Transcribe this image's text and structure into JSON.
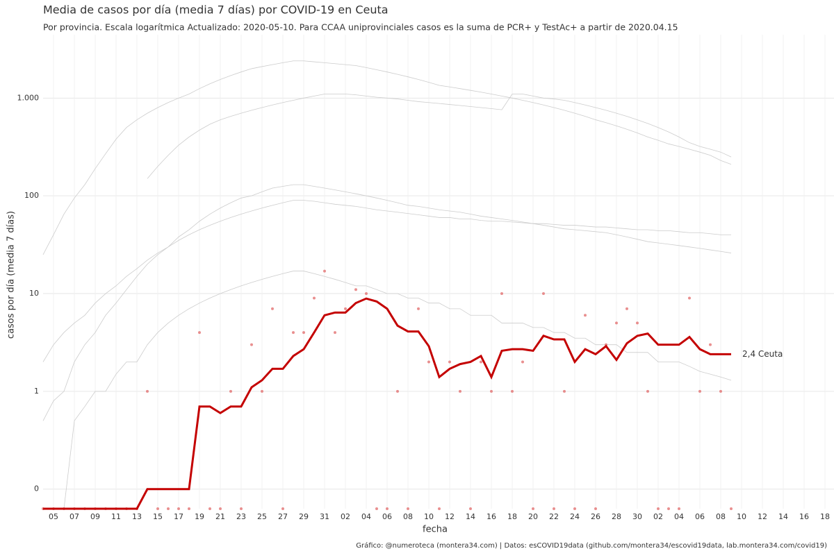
{
  "chart_data": {
    "type": "line",
    "title": "Media de casos por día (media 7 días) por COVID-19 en Ceuta",
    "subtitle": "Por provincia. Escala logarítmica  Actualizado: 2020-05-10. Para CCAA uniprovinciales casos es la suma de PCR+ y TestAc+ a partir de 2020.04.15",
    "x_label": "fecha",
    "y_label": "casos por día (media 7 días)",
    "caption": "Gráfico: @numeroteca (montera34.com) | Datos: esCOVID19data (github.com/montera34/escovid19data, lab.montera34.com/covid19)",
    "end_label": "2,4 Ceuta",
    "log_scale": true,
    "grid": true,
    "categories": [
      null,
      "05",
      null,
      "07",
      null,
      "09",
      null,
      "11",
      null,
      "13",
      null,
      "15",
      null,
      "17",
      null,
      "19",
      null,
      "21",
      null,
      "23",
      null,
      "25",
      null,
      "27",
      null,
      "29",
      null,
      "31",
      null,
      "02",
      null,
      "04",
      null,
      "06",
      null,
      "08",
      null,
      "10",
      null,
      "12",
      null,
      "14",
      null,
      "16",
      null,
      "18",
      null,
      "20",
      null,
      "22",
      null,
      "24",
      null,
      "26",
      null,
      "28",
      null,
      "30",
      null,
      "02",
      null,
      "04",
      null,
      "06",
      null,
      "08",
      null,
      "10",
      null,
      "12",
      null,
      "14",
      null,
      "16",
      null,
      "18"
    ],
    "ylim": [
      0.063,
      4450
    ],
    "yticks": [
      {
        "value": 0.1,
        "label": "0"
      },
      1,
      10,
      100,
      {
        "value": 1000,
        "label": "1.000"
      }
    ],
    "series": [
      {
        "color": "#cccccc",
        "values": [
          25,
          40,
          65,
          95,
          130,
          190,
          270,
          380,
          500,
          600,
          700,
          800,
          900,
          1000,
          1100,
          1250,
          1400,
          1550,
          1700,
          1850,
          2000,
          2100,
          2200,
          2300,
          2400,
          2400,
          2350,
          2300,
          2250,
          2200,
          2150,
          2050,
          1950,
          1850,
          1750,
          1650,
          1550,
          1450,
          1350,
          1300,
          1250,
          1200,
          1150,
          1100,
          1050,
          1000,
          950,
          900,
          850,
          800,
          750,
          700,
          650,
          600,
          560,
          520,
          480,
          440,
          400,
          370,
          340,
          320,
          300,
          280,
          260,
          230,
          210,
          null,
          null,
          null,
          null,
          null,
          null,
          null,
          null,
          null
        ]
      },
      {
        "color": "#cccccc",
        "values": [
          null,
          null,
          null,
          null,
          null,
          null,
          null,
          null,
          null,
          null,
          150,
          200,
          260,
          330,
          400,
          470,
          540,
          600,
          650,
          700,
          750,
          800,
          850,
          900,
          950,
          1000,
          1050,
          1100,
          1100,
          1100,
          1080,
          1050,
          1020,
          1000,
          980,
          950,
          920,
          900,
          880,
          860,
          840,
          820,
          800,
          780,
          760,
          1100,
          1100,
          1050,
          1000,
          980,
          950,
          900,
          850,
          800,
          750,
          700,
          650,
          600,
          550,
          500,
          450,
          400,
          350,
          320,
          300,
          280,
          250,
          null,
          null,
          null,
          null,
          null,
          null,
          null,
          null,
          null
        ]
      },
      {
        "color": "#cccccc",
        "values": [
          0.5,
          0.8,
          1,
          2,
          3,
          4,
          6,
          8,
          11,
          15,
          20,
          25,
          30,
          38,
          45,
          55,
          65,
          75,
          85,
          95,
          100,
          110,
          120,
          125,
          130,
          130,
          125,
          120,
          115,
          110,
          105,
          100,
          95,
          90,
          85,
          80,
          78,
          75,
          72,
          70,
          68,
          65,
          62,
          60,
          58,
          56,
          54,
          52,
          50,
          48,
          46,
          45,
          44,
          43,
          42,
          40,
          38,
          36,
          34,
          33,
          32,
          31,
          30,
          29,
          28,
          27,
          26,
          null,
          null,
          null,
          null,
          null,
          null,
          null,
          null,
          null
        ]
      },
      {
        "color": "#cccccc",
        "values": [
          2,
          3,
          4,
          5,
          6,
          8,
          10,
          12,
          15,
          18,
          22,
          26,
          30,
          35,
          40,
          45,
          50,
          55,
          60,
          65,
          70,
          75,
          80,
          85,
          90,
          90,
          88,
          85,
          82,
          80,
          78,
          75,
          72,
          70,
          68,
          66,
          64,
          62,
          60,
          60,
          58,
          58,
          56,
          55,
          55,
          54,
          53,
          52,
          52,
          51,
          50,
          50,
          49,
          48,
          48,
          47,
          46,
          45,
          45,
          44,
          44,
          43,
          42,
          42,
          41,
          40,
          40,
          null,
          null,
          null,
          null,
          null,
          null,
          null,
          null,
          null
        ]
      },
      {
        "color": "#cccccc",
        "values": [
          0,
          0,
          0,
          0.5,
          0.7,
          1,
          1,
          1.5,
          2,
          2,
          3,
          4,
          5,
          6,
          7,
          8,
          9,
          10,
          11,
          12,
          13,
          14,
          15,
          16,
          17,
          17,
          16,
          15,
          14,
          13,
          12,
          12,
          11,
          10,
          10,
          9,
          9,
          8,
          8,
          7,
          7,
          6,
          6,
          6,
          5,
          5,
          5,
          4.5,
          4.5,
          4,
          4,
          3.5,
          3.5,
          3,
          3,
          3,
          2.5,
          2.5,
          2.5,
          2,
          2,
          2,
          1.8,
          1.6,
          1.5,
          1.4,
          1.3,
          null,
          null,
          null,
          null,
          null,
          null,
          null,
          null,
          null
        ]
      },
      {
        "name": "Ceuta",
        "color": "#c40000",
        "values": [
          0,
          0,
          0,
          0,
          0,
          0,
          0,
          0,
          0,
          0,
          0.1,
          0.1,
          0.1,
          0.1,
          0.1,
          0.7,
          0.7,
          0.6,
          0.7,
          0.7,
          1.1,
          1.3,
          1.7,
          1.7,
          2.3,
          2.7,
          4,
          6,
          6.4,
          6.4,
          8,
          8.9,
          8.3,
          7,
          4.7,
          4.1,
          4.1,
          2.9,
          1.4,
          1.7,
          1.9,
          2,
          2.3,
          1.4,
          2.6,
          2.7,
          2.7,
          2.6,
          3.7,
          3.4,
          3.4,
          2,
          2.7,
          2.4,
          2.9,
          2.1,
          3.1,
          3.7,
          3.9,
          3,
          3,
          3,
          3.6,
          2.7,
          2.4,
          2.4,
          2.4,
          null,
          null,
          null,
          null,
          null,
          null,
          null,
          null,
          null
        ]
      }
    ],
    "points": {
      "color": "#e06060",
      "values": [
        0,
        0,
        0,
        0,
        0,
        0,
        0,
        0,
        0,
        0,
        1,
        0,
        0,
        0,
        0,
        4,
        0,
        0,
        1,
        0,
        3,
        1,
        7,
        0,
        4,
        4,
        9,
        17,
        4,
        7,
        11,
        10,
        0,
        0,
        1,
        0,
        7,
        2,
        0,
        2,
        1,
        0,
        2,
        1,
        10,
        1,
        2,
        0,
        10,
        0,
        1,
        0,
        6,
        0,
        3,
        5,
        7,
        5,
        1,
        0,
        0,
        0,
        9,
        1,
        3,
        1,
        0,
        null,
        null,
        null,
        null,
        null,
        null,
        null,
        null,
        null
      ]
    }
  }
}
